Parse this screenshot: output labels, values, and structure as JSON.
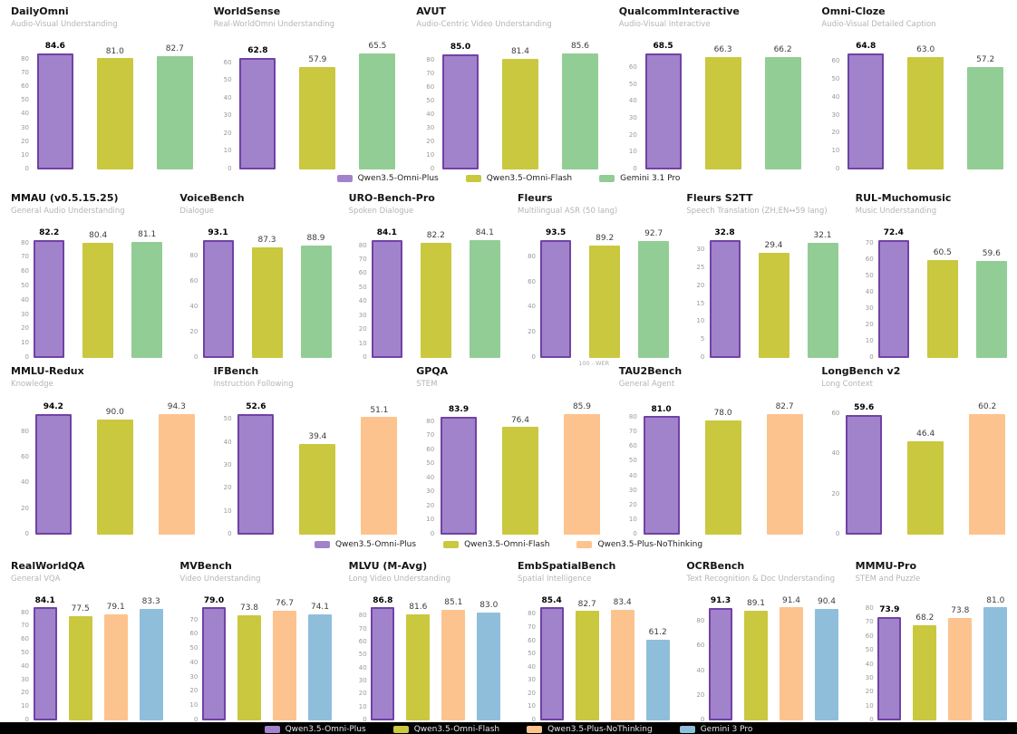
{
  "page": {
    "background": "#ffffff",
    "divider_color": "#000000"
  },
  "chart_data": {
    "type": "bar",
    "grid": "off",
    "rows": [
      {
        "name": "omni-audio-visual-benchmarks",
        "columns": 5,
        "series": [
          {
            "name": "Qwen3.5-Omni-Plus",
            "color": "#a183cc",
            "border": "#7142a5"
          },
          {
            "name": "Qwen3.5-Omni-Flash",
            "color": "#c9c83f"
          },
          {
            "name": "Gemini 3.1 Pro",
            "color": "#92cd96"
          }
        ],
        "charts": [
          {
            "title": "DailyOmni",
            "subtitle": "Audio-Visual Understanding",
            "values": [
              84.6,
              81.0,
              82.7
            ],
            "yticks": [
              0,
              10,
              20,
              30,
              40,
              50,
              60,
              70,
              80
            ]
          },
          {
            "title": "WorldSense",
            "subtitle": "Real-WorldOmni Understanding",
            "values": [
              62.8,
              57.9,
              65.5
            ],
            "yticks": [
              0,
              10,
              20,
              30,
              40,
              50,
              60
            ]
          },
          {
            "title": "AVUT",
            "subtitle": "Audio-Centric Video Understanding",
            "values": [
              85.0,
              81.4,
              85.6
            ],
            "yticks": [
              0,
              10,
              20,
              30,
              40,
              50,
              60,
              70,
              80
            ]
          },
          {
            "title": "QualcommInteractive",
            "subtitle": "Audio-Visual Interactive",
            "values": [
              68.5,
              66.3,
              66.2
            ],
            "yticks": [
              0,
              10,
              20,
              30,
              40,
              50,
              60
            ]
          },
          {
            "title": "Omni-Cloze",
            "subtitle": "Audio-Visual Detailed Caption",
            "values": [
              64.8,
              63.0,
              57.2
            ],
            "yticks": [
              0,
              10,
              20,
              30,
              40,
              50,
              60
            ]
          }
        ]
      },
      {
        "name": "audio-speech-benchmarks",
        "columns": 6,
        "series": [
          {
            "name": "Qwen3.5-Omni-Plus",
            "color": "#a183cc",
            "border": "#7142a5"
          },
          {
            "name": "Qwen3.5-Omni-Flash",
            "color": "#c9c83f"
          },
          {
            "name": "Gemini 3.1 Pro",
            "color": "#92cd96"
          }
        ],
        "charts": [
          {
            "title": "MMAU (v0.5.15.25)",
            "subtitle": "General Audio Understanding",
            "values": [
              82.2,
              80.4,
              81.1
            ],
            "yticks": [
              0,
              10,
              20,
              30,
              40,
              50,
              60,
              70,
              80
            ]
          },
          {
            "title": "VoiceBench",
            "subtitle": "Dialogue",
            "values": [
              93.1,
              87.3,
              88.9
            ],
            "yticks": [
              0,
              20,
              40,
              60,
              80
            ]
          },
          {
            "title": "URO-Bench-Pro",
            "subtitle": "Spoken Dialogue",
            "values": [
              84.1,
              82.2,
              84.1
            ],
            "yticks": [
              0,
              10,
              20,
              30,
              40,
              50,
              60,
              70,
              80
            ]
          },
          {
            "title": "Fleurs",
            "subtitle": "Multilingual ASR (50 lang)",
            "values": [
              93.5,
              89.2,
              92.7
            ],
            "yticks": [
              0,
              20,
              40,
              60,
              80
            ],
            "footnote": "100 - WER"
          },
          {
            "title": "Fleurs S2TT",
            "subtitle": "Speech Translation (ZH,EN↔59 lang)",
            "values": [
              32.8,
              29.4,
              32.1
            ],
            "yticks": [
              0,
              5,
              10,
              15,
              20,
              25,
              30
            ]
          },
          {
            "title": "RUL-Muchomusic",
            "subtitle": "Music Understanding",
            "values": [
              72.4,
              60.5,
              59.6
            ],
            "yticks": [
              0,
              10,
              20,
              30,
              40,
              50,
              60,
              70
            ]
          }
        ]
      },
      {
        "name": "text-reasoning-benchmarks",
        "columns": 5,
        "series": [
          {
            "name": "Qwen3.5-Omni-Plus",
            "color": "#a183cc",
            "border": "#7142a5"
          },
          {
            "name": "Qwen3.5-Omni-Flash",
            "color": "#c9c83f"
          },
          {
            "name": "Qwen3.5-Plus-NoThinking",
            "color": "#fdc38e"
          }
        ],
        "charts": [
          {
            "title": "MMLU-Redux",
            "subtitle": "Knowledge",
            "values": [
              94.2,
              90.0,
              94.3
            ],
            "yticks": [
              0,
              20,
              40,
              60,
              80
            ]
          },
          {
            "title": "IFBench",
            "subtitle": "Instruction Following",
            "values": [
              52.6,
              39.4,
              51.1
            ],
            "yticks": [
              0,
              10,
              20,
              30,
              40,
              50
            ]
          },
          {
            "title": "GPQA",
            "subtitle": "STEM",
            "values": [
              83.9,
              76.4,
              85.9
            ],
            "yticks": [
              0,
              10,
              20,
              30,
              40,
              50,
              60,
              70,
              80
            ]
          },
          {
            "title": "TAU2Bench",
            "subtitle": "General Agent",
            "values": [
              81.0,
              78.0,
              82.7
            ],
            "yticks": [
              0,
              10,
              20,
              30,
              40,
              50,
              60,
              70,
              80
            ]
          },
          {
            "title": "LongBench v2",
            "subtitle": "Long Context",
            "values": [
              59.6,
              46.4,
              60.2
            ],
            "yticks": [
              0,
              20,
              40,
              60
            ]
          }
        ]
      },
      {
        "name": "vision-benchmarks",
        "columns": 6,
        "series": [
          {
            "name": "Qwen3.5-Omni-Plus",
            "color": "#a183cc",
            "border": "#7142a5"
          },
          {
            "name": "Qwen3.5-Omni-Flash",
            "color": "#c9c83f"
          },
          {
            "name": "Qwen3.5-Plus-NoThinking",
            "color": "#fdc38e"
          },
          {
            "name": "Gemini 3 Pro",
            "color": "#8fbedb"
          }
        ],
        "charts": [
          {
            "title": "RealWorldQA",
            "subtitle": "General VQA",
            "values": [
              84.1,
              77.5,
              79.1,
              83.3
            ],
            "yticks": [
              0,
              10,
              20,
              30,
              40,
              50,
              60,
              70,
              80
            ]
          },
          {
            "title": "MVBench",
            "subtitle": "Video Understanding",
            "values": [
              79.0,
              73.8,
              76.7,
              74.1
            ],
            "yticks": [
              0,
              10,
              20,
              30,
              40,
              50,
              60,
              70
            ]
          },
          {
            "title": "MLVU (M-Avg)",
            "subtitle": "Long Video Understanding",
            "values": [
              86.8,
              81.6,
              85.1,
              83.0
            ],
            "yticks": [
              0,
              10,
              20,
              30,
              40,
              50,
              60,
              70,
              80
            ]
          },
          {
            "title": "EmbSpatialBench",
            "subtitle": "Spatial Intelligence",
            "values": [
              85.4,
              82.7,
              83.4,
              61.2
            ],
            "yticks": [
              0,
              10,
              20,
              30,
              40,
              50,
              60,
              70,
              80
            ]
          },
          {
            "title": "OCRBench",
            "subtitle": "Text Recognition & Doc Understanding",
            "values": [
              91.3,
              89.1,
              91.4,
              90.4
            ],
            "yticks": [
              0,
              20,
              40,
              60,
              80
            ]
          },
          {
            "title": "MMMU-Pro",
            "subtitle": "STEM and Puzzle",
            "values": [
              73.9,
              68.2,
              73.8,
              81.0
            ],
            "yticks": [
              0,
              10,
              20,
              30,
              40,
              50,
              60,
              70,
              80
            ]
          }
        ]
      }
    ]
  }
}
